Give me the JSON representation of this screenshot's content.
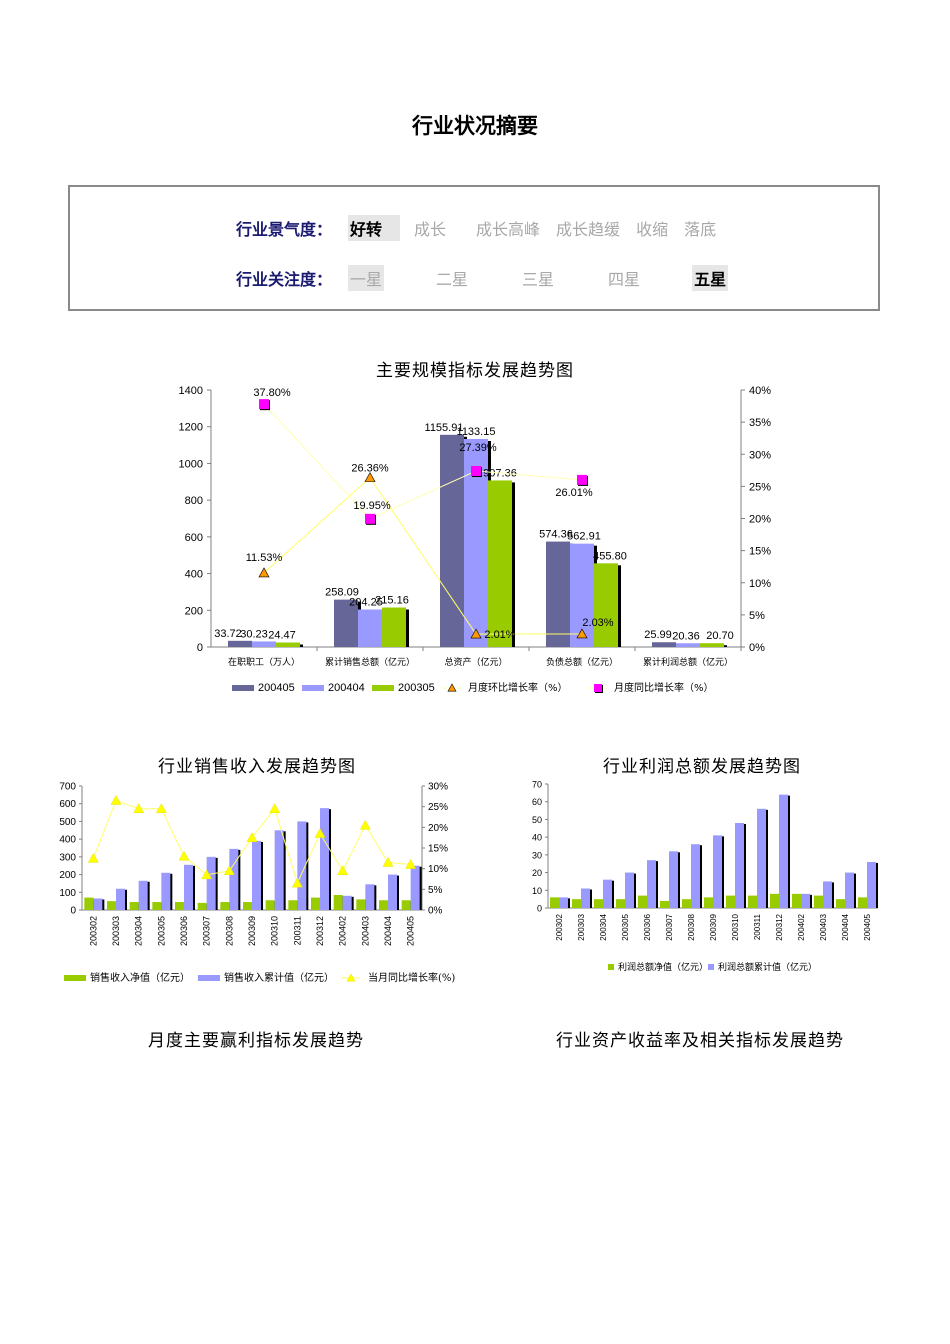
{
  "page": {
    "title": "行业状况摘要"
  },
  "status": {
    "climate": {
      "label": "行业景气度",
      "colon": "：",
      "options": [
        "好转",
        "成长",
        "成长高峰",
        "成长趋缓",
        "收缩",
        "落底"
      ],
      "selected": 0
    },
    "attention": {
      "label": "行业关注度",
      "colon": "：",
      "options": [
        "一星",
        "二星",
        "三星",
        "四星",
        "五星"
      ],
      "selected": 4
    }
  },
  "sections": {
    "monthly_profit": "月度主要赢利指标发展趋势",
    "asset_return": "行业资产收益率及相关指标发展趋势"
  },
  "chart_data": [
    {
      "id": "main",
      "type": "bar",
      "title": "主要规模指标发展趋势图",
      "categories": [
        "在职职工（万人）",
        "累计销售总额（亿元）",
        "总资产（亿元）",
        "负债总额（亿元）",
        "累计利润总额（亿元）"
      ],
      "ylim": [
        0,
        1400
      ],
      "yticks": [
        "0",
        "200",
        "400",
        "600",
        "800",
        "1000",
        "1200",
        "1400"
      ],
      "y2lim": [
        0,
        40
      ],
      "y2ticks": [
        "0%",
        "5%",
        "10%",
        "15%",
        "20%",
        "25%",
        "30%",
        "35%",
        "40%"
      ],
      "series": [
        {
          "name": "200405",
          "type": "bar",
          "axis": "left",
          "color": "#666699",
          "values": [
            33.72,
            258.09,
            1155.91,
            574.36,
            25.99
          ],
          "labels": [
            "33.72",
            "258.09",
            "1155.91",
            "574.36",
            "25.99"
          ]
        },
        {
          "name": "200404",
          "type": "bar",
          "axis": "left",
          "color": "#9999ff",
          "values": [
            30.23,
            204.25,
            1133.15,
            562.91,
            20.36
          ],
          "labels": [
            "30.23",
            "204.25",
            "1133.15",
            "562.91",
            "20.36"
          ]
        },
        {
          "name": "200305",
          "type": "bar",
          "axis": "left",
          "color": "#99cc00",
          "values": [
            24.47,
            215.16,
            907.36,
            455.8,
            20.7
          ],
          "labels": [
            "24.47",
            "215.16",
            "907.36",
            "455.80",
            "20.70"
          ]
        },
        {
          "name": "月度环比增长率（%）",
          "type": "line",
          "axis": "right",
          "color": "#ff9900",
          "marker": "triangle",
          "values": [
            11.53,
            26.36,
            2.01,
            2.03,
            null
          ],
          "labels": [
            "11.53%",
            "26.36%",
            "2.01%",
            "2.03%",
            ""
          ]
        },
        {
          "name": "月度同比增长率（%）",
          "type": "line",
          "axis": "right",
          "color": "#ff00ff",
          "marker": "square",
          "values": [
            37.8,
            19.95,
            27.39,
            26.01,
            null
          ],
          "labels": [
            "37.80%",
            "19.95%",
            "27.39%",
            "26.01%",
            ""
          ]
        }
      ],
      "grid": false,
      "legend": "bottom"
    },
    {
      "id": "sales",
      "type": "bar",
      "title": "行业销售收入发展趋势图",
      "categories": [
        "200302",
        "200303",
        "200304",
        "200305",
        "200306",
        "200307",
        "200308",
        "200309",
        "200310",
        "200311",
        "200312",
        "200402",
        "200403",
        "200404",
        "200405"
      ],
      "ylim": [
        0,
        700
      ],
      "yticks": [
        "0",
        "100",
        "200",
        "300",
        "400",
        "500",
        "600",
        "700"
      ],
      "y2lim": [
        0,
        30
      ],
      "y2ticks": [
        "0%",
        "5%",
        "10%",
        "15%",
        "20%",
        "25%",
        "30%"
      ],
      "series": [
        {
          "name": "销售收入净值（亿元）",
          "type": "bar",
          "axis": "left",
          "color": "#99cc00",
          "values": [
            70,
            50,
            45,
            45,
            45,
            40,
            45,
            45,
            55,
            55,
            70,
            85,
            60,
            55,
            55
          ]
        },
        {
          "name": "销售收入累计值（亿元）",
          "type": "bar",
          "axis": "left",
          "color": "#9999ff",
          "values": [
            65,
            120,
            165,
            210,
            255,
            300,
            345,
            390,
            450,
            500,
            575,
            80,
            145,
            200,
            250
          ]
        },
        {
          "name": "当月同比增长率(%)",
          "type": "line",
          "axis": "right",
          "color": "#ffff00",
          "marker": "triangle",
          "values": [
            12.5,
            26.5,
            24.5,
            24.5,
            13,
            8.5,
            9.5,
            17.5,
            24.5,
            6.5,
            18.5,
            9.5,
            20.5,
            11.5,
            11
          ]
        }
      ],
      "grid": false,
      "legend": "bottom"
    },
    {
      "id": "profit",
      "type": "bar",
      "title": "行业利润总额发展趋势图",
      "categories": [
        "200302",
        "200303",
        "200304",
        "200305",
        "200306",
        "200307",
        "200308",
        "200309",
        "200310",
        "200311",
        "200312",
        "200402",
        "200403",
        "200404",
        "200405"
      ],
      "ylim": [
        0,
        70
      ],
      "yticks": [
        "0",
        "10",
        "20",
        "30",
        "40",
        "50",
        "60",
        "70"
      ],
      "series": [
        {
          "name": "利润总额净值（亿元）",
          "type": "bar",
          "color": "#99cc00",
          "values": [
            6,
            5,
            5,
            5,
            7,
            4,
            5,
            6,
            7,
            7,
            8,
            8,
            7,
            5,
            6
          ]
        },
        {
          "name": "利润总额累计值（亿元）",
          "type": "bar",
          "color": "#9999ff",
          "values": [
            6,
            11,
            16,
            20,
            27,
            32,
            36,
            41,
            48,
            56,
            64,
            8,
            15,
            20,
            26
          ]
        }
      ],
      "grid": false,
      "legend": "bottom"
    }
  ]
}
